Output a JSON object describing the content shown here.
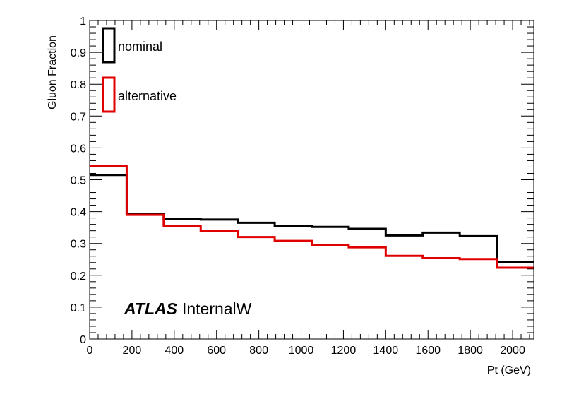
{
  "chart_data": {
    "type": "line",
    "style": "step-histogram",
    "xlabel": "Pt (GeV)",
    "ylabel": "Gluon Fraction",
    "xlim": [
      0,
      2100
    ],
    "ylim": [
      0,
      1
    ],
    "x_ticks": [
      0,
      200,
      400,
      600,
      800,
      1000,
      1200,
      1400,
      1600,
      1800,
      2000
    ],
    "y_ticks": [
      0,
      0.1,
      0.2,
      0.3,
      0.4,
      0.5,
      0.6,
      0.7,
      0.8,
      0.9,
      1
    ],
    "x_tick_labels": [
      "0",
      "200",
      "400",
      "600",
      "800",
      "1000",
      "1200",
      "1400",
      "1600",
      "1800",
      "2000"
    ],
    "y_tick_labels": [
      "0",
      "0.1",
      "0.2",
      "0.3",
      "0.4",
      "0.5",
      "0.6",
      "0.7",
      "0.8",
      "0.9",
      "1"
    ],
    "bin_edges": [
      0,
      175,
      350,
      525,
      700,
      875,
      1050,
      1225,
      1400,
      1575,
      1750,
      1925,
      2100
    ],
    "series": [
      {
        "name": "nominal",
        "color": "#000000",
        "values": [
          0.515,
          0.392,
          0.378,
          0.375,
          0.365,
          0.356,
          0.352,
          0.346,
          0.325,
          0.334,
          0.323,
          0.241
        ]
      },
      {
        "name": "alternative",
        "color": "#e00000",
        "values": [
          0.542,
          0.39,
          0.355,
          0.339,
          0.32,
          0.308,
          0.294,
          0.288,
          0.261,
          0.254,
          0.251,
          0.224
        ]
      }
    ],
    "legend": {
      "position": "top-left",
      "items": [
        "nominal",
        "alternative"
      ]
    },
    "annotation": {
      "bold": "ATLAS",
      "text": "InternalW"
    },
    "grid": false
  }
}
